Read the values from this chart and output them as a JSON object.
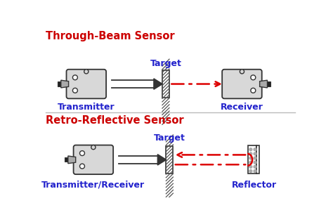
{
  "title1": "Through-Beam Sensor",
  "title2": "Retro-Reflective Sensor",
  "title_color": "#cc0000",
  "label_color": "#2222cc",
  "box_color": "#d8d8d8",
  "box_edge": "#333333",
  "arrow_color": "#333333",
  "beam_color": "#dd0000",
  "bg_color": "#ffffff",
  "label_transmitter": "Transmitter",
  "label_receiver": "Receiver",
  "label_trans_recv": "Transmitter/Receiver",
  "label_reflector": "Reflector",
  "label_target": "Target",
  "divider_color": "#bbbbbb",
  "hatch_color": "#555555",
  "title1_fontsize": 10.5,
  "title2_fontsize": 10.5,
  "label_fontsize": 9.0
}
